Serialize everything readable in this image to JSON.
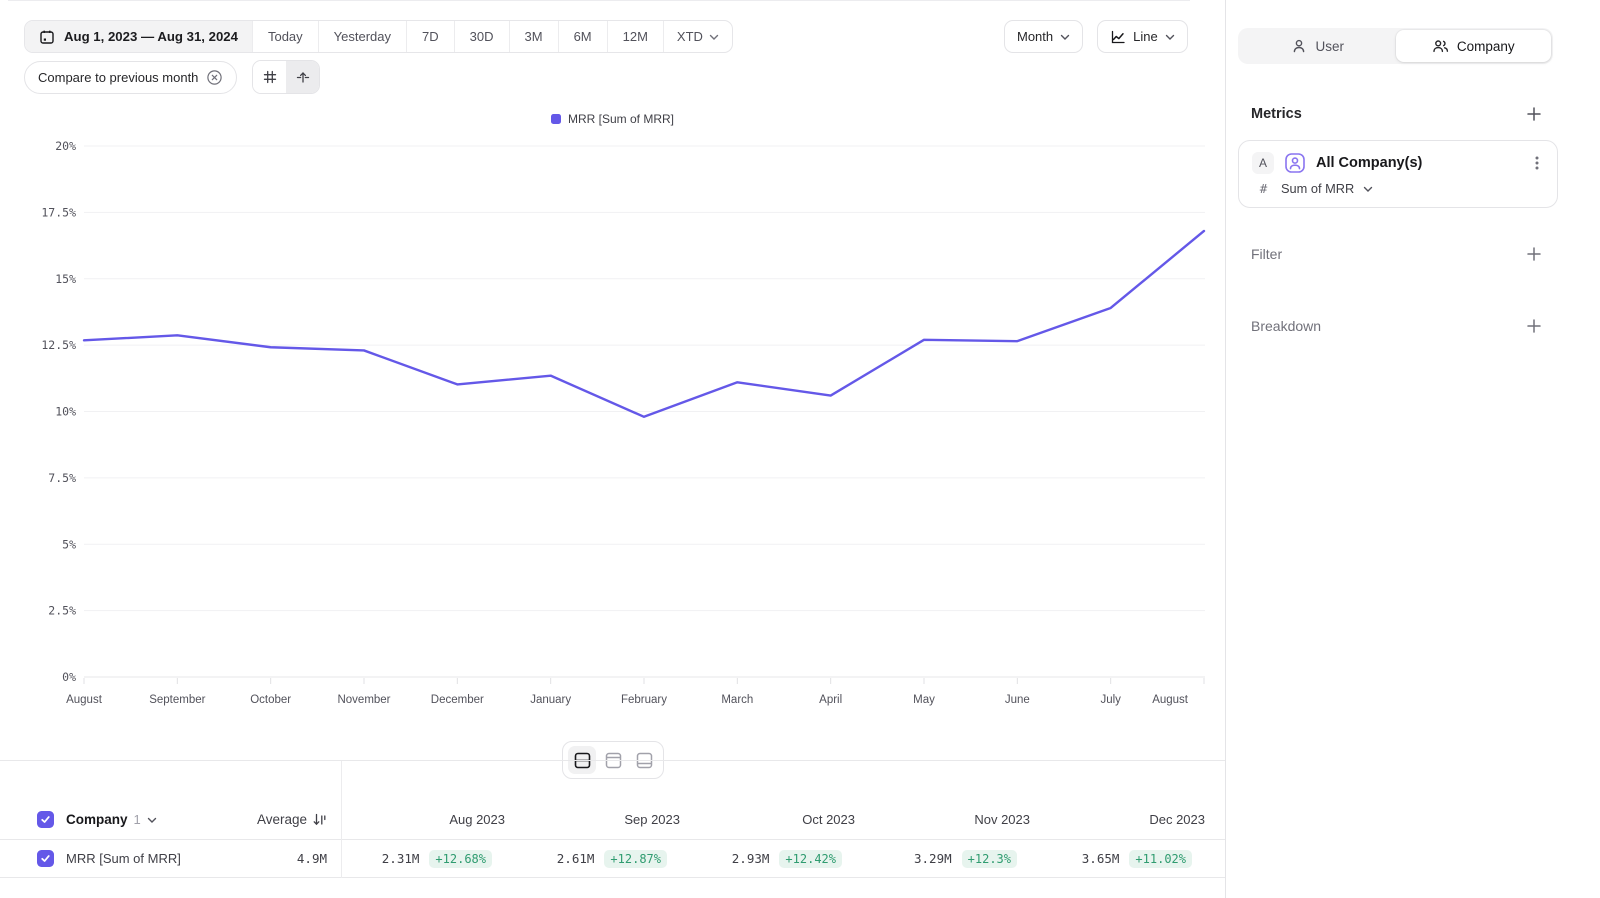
{
  "toolbar": {
    "date_range": "Aug 1, 2023 — Aug 31, 2024",
    "quick_ranges": [
      "Today",
      "Yesterday",
      "7D",
      "30D",
      "3M",
      "6M",
      "12M"
    ],
    "xtd_label": "XTD",
    "granularity": "Month",
    "chart_type": "Line",
    "compare_chip": "Compare to previous month"
  },
  "legend": {
    "label": "MRR [Sum of MRR]"
  },
  "chart_data": {
    "type": "line",
    "title": "",
    "xlabel": "",
    "ylabel": "",
    "categories": [
      "August",
      "September",
      "October",
      "November",
      "December",
      "January",
      "February",
      "March",
      "April",
      "May",
      "June",
      "July",
      "August"
    ],
    "series": [
      {
        "name": "MRR [Sum of MRR]",
        "values": [
          12.68,
          12.87,
          12.42,
          12.3,
          11.02,
          11.35,
          9.8,
          11.1,
          10.6,
          12.7,
          12.65,
          13.9,
          16.8
        ]
      }
    ],
    "ylim": [
      0,
      20
    ],
    "yticks": [
      0,
      2.5,
      5,
      7.5,
      10,
      12.5,
      15,
      17.5,
      20
    ],
    "ytick_labels": [
      "0%",
      "2.5%",
      "5%",
      "7.5%",
      "10%",
      "12.5%",
      "15%",
      "17.5%",
      "20%"
    ],
    "grid": true,
    "legend_position": "top",
    "line_color": "#6458e8"
  },
  "sidebar": {
    "toggle": {
      "user": "User",
      "company": "Company",
      "active": "Company"
    },
    "metrics": {
      "title": "Metrics",
      "card": {
        "badge": "A",
        "name": "All Company(s)",
        "measure_prefix": "#",
        "measure": "Sum of MRR"
      }
    },
    "filter_label": "Filter",
    "breakdown_label": "Breakdown"
  },
  "table": {
    "entity": {
      "label": "Company",
      "count": "1"
    },
    "average_label": "Average",
    "columns": [
      "Aug 2023",
      "Sep 2023",
      "Oct 2023",
      "Nov 2023",
      "Dec 2023"
    ],
    "rows": [
      {
        "label": "MRR [Sum of MRR]",
        "average": "4.9M",
        "cells": [
          {
            "value": "2.31M",
            "delta": "+12.68%"
          },
          {
            "value": "2.61M",
            "delta": "+12.87%"
          },
          {
            "value": "2.93M",
            "delta": "+12.42%"
          },
          {
            "value": "3.29M",
            "delta": "+12.3%"
          },
          {
            "value": "3.65M",
            "delta": "+11.02%"
          }
        ]
      }
    ]
  },
  "colors": {
    "accent": "#6458e8",
    "positive_text": "#2f9c70",
    "positive_bg": "#e7f4ee",
    "grid_line": "#f1f1f3",
    "border": "#e4e4e7"
  }
}
